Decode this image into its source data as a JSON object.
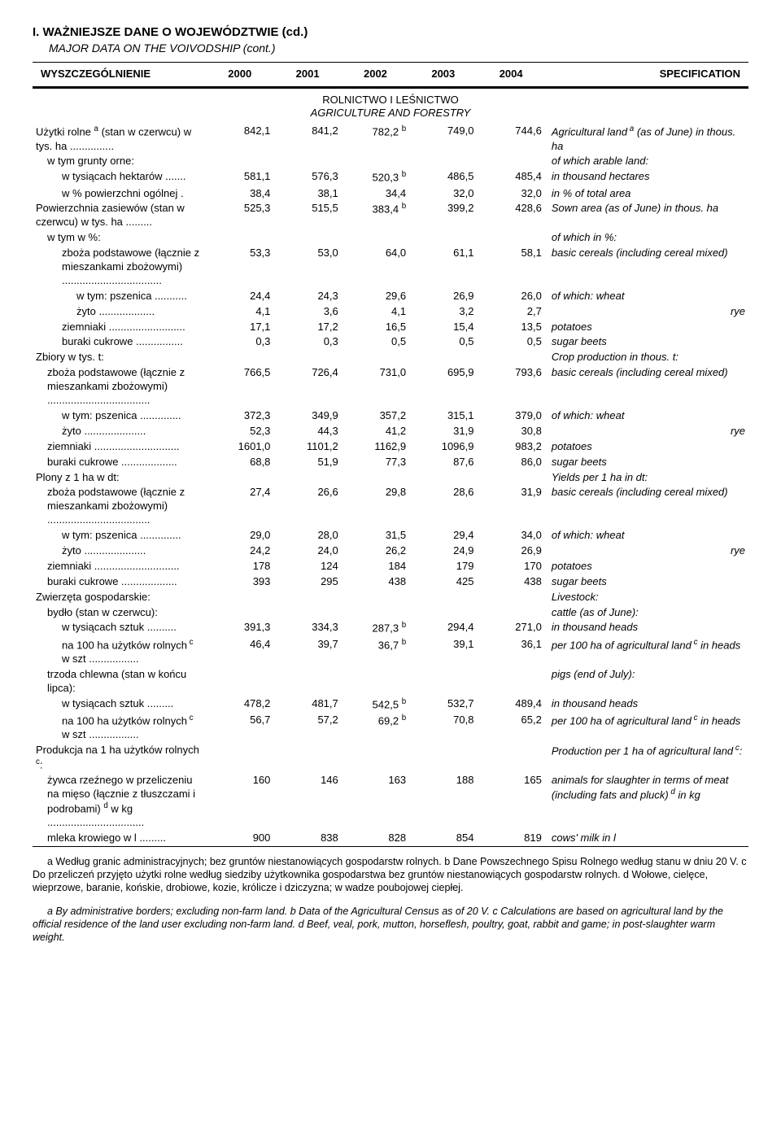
{
  "typography": {
    "body_font": "Arial",
    "body_size_pt": 10,
    "title_size_pt": 11
  },
  "colors": {
    "text": "#000000",
    "line": "#000000",
    "background": "#ffffff"
  },
  "header": {
    "title": "I. WAŻNIEJSZE DANE O WOJEWÓDZTWIE (cd.)",
    "subtitle": "MAJOR DATA ON THE VOIVODSHIP (cont.)",
    "col_label_left": "WYSZCZEGÓLNIENIE",
    "years": [
      "2000",
      "2001",
      "2002",
      "2003",
      "2004"
    ],
    "col_label_right": "SPECIFICATION"
  },
  "section": {
    "pl": "ROLNICTWO I LEŚNICTWO",
    "en": "AGRICULTURE AND FORESTRY"
  },
  "rows": [
    {
      "pl": "Użytki rolne <sup>a</sup> (stan w czerwcu) w tys. ha ...............",
      "vals": [
        "842,1",
        "841,2",
        "782,2 <sup>b</sup>",
        "749,0",
        "744,6"
      ],
      "en": "Agricultural land<sup> a</sup> (as of June) in thous. ha",
      "ind": 0
    },
    {
      "pl": "w tym grunty orne:",
      "vals": [
        "",
        "",
        "",
        "",
        ""
      ],
      "en": "of which arable land:",
      "ind": 1
    },
    {
      "pl": "w tysiącach hektarów .......",
      "vals": [
        "581,1",
        "576,3",
        "520,3 <sup>b</sup>",
        "486,5",
        "485,4"
      ],
      "en": "in thousand hectares",
      "ind": 2
    },
    {
      "pl": "w % powierzchni ogólnej .",
      "vals": [
        "38,4",
        "38,1",
        "34,4",
        "32,0",
        "32,0"
      ],
      "en": "in % of total area",
      "ind": 2
    },
    {
      "pl": "Powierzchnia zasiewów (stan w czerwcu) w tys. ha .........",
      "vals": [
        "525,3",
        "515,5",
        "383,4 <sup>b</sup>",
        "399,2",
        "428,6"
      ],
      "en": "Sown area (as of June) in thous. ha",
      "ind": 0
    },
    {
      "pl": "w tym w %:",
      "vals": [
        "",
        "",
        "",
        "",
        ""
      ],
      "en": "of which in %:",
      "ind": 1
    },
    {
      "pl": "zboża podstawowe (łącznie z mieszankami zbożowymi) ..................................",
      "vals": [
        "53,3",
        "53,0",
        "64,0",
        "61,1",
        "58,1"
      ],
      "en": "basic cereals (including cereal mixed)",
      "ind": 2
    },
    {
      "pl": "w tym: pszenica ...........",
      "vals": [
        "24,4",
        "24,3",
        "29,6",
        "26,9",
        "26,0"
      ],
      "en": "of which: wheat",
      "ind": 3
    },
    {
      "pl": "żyto ...................",
      "vals": [
        "4,1",
        "3,6",
        "4,1",
        "3,2",
        "2,7"
      ],
      "en": "rye",
      "ind": 3,
      "enalign": "right"
    },
    {
      "pl": "ziemniaki ..........................",
      "vals": [
        "17,1",
        "17,2",
        "16,5",
        "15,4",
        "13,5"
      ],
      "en": "potatoes",
      "ind": 2
    },
    {
      "pl": "buraki cukrowe ................",
      "vals": [
        "0,3",
        "0,3",
        "0,5",
        "0,5",
        "0,5"
      ],
      "en": "sugar beets",
      "ind": 2
    },
    {
      "pl": "Zbiory w tys. t:",
      "vals": [
        "",
        "",
        "",
        "",
        ""
      ],
      "en": "Crop production in thous. t:",
      "ind": 0
    },
    {
      "pl": "zboża podstawowe (łącznie z mieszankami zbożowymi) ...................................",
      "vals": [
        "766,5",
        "726,4",
        "731,0",
        "695,9",
        "793,6"
      ],
      "en": "basic cereals (including cereal mixed)",
      "ind": 1
    },
    {
      "pl": "w tym: pszenica ..............",
      "vals": [
        "372,3",
        "349,9",
        "357,2",
        "315,1",
        "379,0"
      ],
      "en": "of which: wheat",
      "ind": 2
    },
    {
      "pl": "żyto .....................",
      "vals": [
        "52,3",
        "44,3",
        "41,2",
        "31,9",
        "30,8"
      ],
      "en": "rye",
      "ind": 2,
      "enalign": "right"
    },
    {
      "pl": "ziemniaki .............................",
      "vals": [
        "1601,0",
        "1101,2",
        "1162,9",
        "1096,9",
        "983,2"
      ],
      "en": "potatoes",
      "ind": 1
    },
    {
      "pl": "buraki cukrowe ...................",
      "vals": [
        "68,8",
        "51,9",
        "77,3",
        "87,6",
        "86,0"
      ],
      "en": "sugar beets",
      "ind": 1
    },
    {
      "pl": "Plony z 1 ha w dt:",
      "vals": [
        "",
        "",
        "",
        "",
        ""
      ],
      "en": "Yields per 1 ha in dt:",
      "ind": 0
    },
    {
      "pl": "zboża podstawowe (łącznie z mieszankami zbożowymi) ...................................",
      "vals": [
        "27,4",
        "26,6",
        "29,8",
        "28,6",
        "31,9"
      ],
      "en": "basic cereals (including cereal mixed)",
      "ind": 1
    },
    {
      "pl": "w tym: pszenica ..............",
      "vals": [
        "29,0",
        "28,0",
        "31,5",
        "29,4",
        "34,0"
      ],
      "en": "of which: wheat",
      "ind": 2
    },
    {
      "pl": "żyto .....................",
      "vals": [
        "24,2",
        "24,0",
        "26,2",
        "24,9",
        "26,9"
      ],
      "en": "rye",
      "ind": 2,
      "enalign": "right"
    },
    {
      "pl": "ziemniaki .............................",
      "vals": [
        "178",
        "124",
        "184",
        "179",
        "170"
      ],
      "en": "potatoes",
      "ind": 1
    },
    {
      "pl": "buraki cukrowe ...................",
      "vals": [
        "393",
        "295",
        "438",
        "425",
        "438"
      ],
      "en": "sugar beets",
      "ind": 1
    },
    {
      "pl": "Zwierzęta gospodarskie:",
      "vals": [
        "",
        "",
        "",
        "",
        ""
      ],
      "en": "Livestock:",
      "ind": 0
    },
    {
      "pl": "bydło (stan w czerwcu):",
      "vals": [
        "",
        "",
        "",
        "",
        ""
      ],
      "en": "cattle (as of June):",
      "ind": 1
    },
    {
      "pl": "w tysiącach sztuk ..........",
      "vals": [
        "391,3",
        "334,3",
        "287,3 <sup>b</sup>",
        "294,4",
        "271,0"
      ],
      "en": "in thousand heads",
      "ind": 2
    },
    {
      "pl": "na 100 ha użytków rolnych<sup> c</sup> w szt .................",
      "vals": [
        "46,4",
        "39,7",
        "36,7 <sup>b</sup>",
        "39,1",
        "36,1"
      ],
      "en": "per 100 ha of agricultural land<sup> c</sup> in heads",
      "ind": 2
    },
    {
      "pl": "trzoda chlewna (stan w końcu lipca):",
      "vals": [
        "",
        "",
        "",
        "",
        ""
      ],
      "en": "pigs (end of July):",
      "ind": 1
    },
    {
      "pl": "w tysiącach sztuk .........",
      "vals": [
        "478,2",
        "481,7",
        "542,5 <sup>b</sup>",
        "532,7",
        "489,4"
      ],
      "en": "in thousand heads",
      "ind": 2
    },
    {
      "pl": "na 100 ha użytków rolnych<sup> c</sup> w szt .................",
      "vals": [
        "56,7",
        "57,2",
        "69,2 <sup>b</sup>",
        "70,8",
        "65,2"
      ],
      "en": "per 100 ha of agricultural land<sup> c</sup> in heads",
      "ind": 2
    },
    {
      "pl": "Produkcja na 1 ha użytków rolnych<sup> c</sup>:",
      "vals": [
        "",
        "",
        "",
        "",
        ""
      ],
      "en": "Production per 1 ha of agricultural land<sup> c</sup>:",
      "ind": 0
    },
    {
      "pl": "żywca rzeźnego w przeliczeniu na mięso (łącznie z tłuszczami i podrobami) <sup>d</sup> w kg .................................",
      "vals": [
        "160",
        "146",
        "163",
        "188",
        "165"
      ],
      "en": "animals for slaughter in terms of meat (including fats and pluck)<sup> d</sup> in kg",
      "ind": 1
    },
    {
      "pl": "mleka krowiego w l .........",
      "vals": [
        "900",
        "838",
        "828",
        "854",
        "819"
      ],
      "en": "cows' milk in l",
      "ind": 1
    }
  ],
  "footnotes": {
    "pl": "a Według granic administracyjnych; bez gruntów niestanowiących gospodarstw rolnych.  b Dane Powszechnego Spisu Rolnego według stanu w dniu 20 V.  c Do przeliczeń przyjęto użytki rolne według siedziby użytkownika gospodarstwa bez gruntów niestanowiących gospodarstw rolnych.  d Wołowe, cielęce, wieprzowe, baranie, końskie, drobiowe, kozie, królicze i dziczyzna; w wadze poubojowej ciepłej.",
    "en": "a By administrative borders; excluding non-farm land.  b Data of the Agricultural Census as of 20 V.  c Calculations are based on agricultural land by the official residence of the land user excluding non-farm land.  d Beef, veal, pork, mutton, horseflesh, poultry, goat, rabbit and game; in post-slaughter warm weight."
  }
}
